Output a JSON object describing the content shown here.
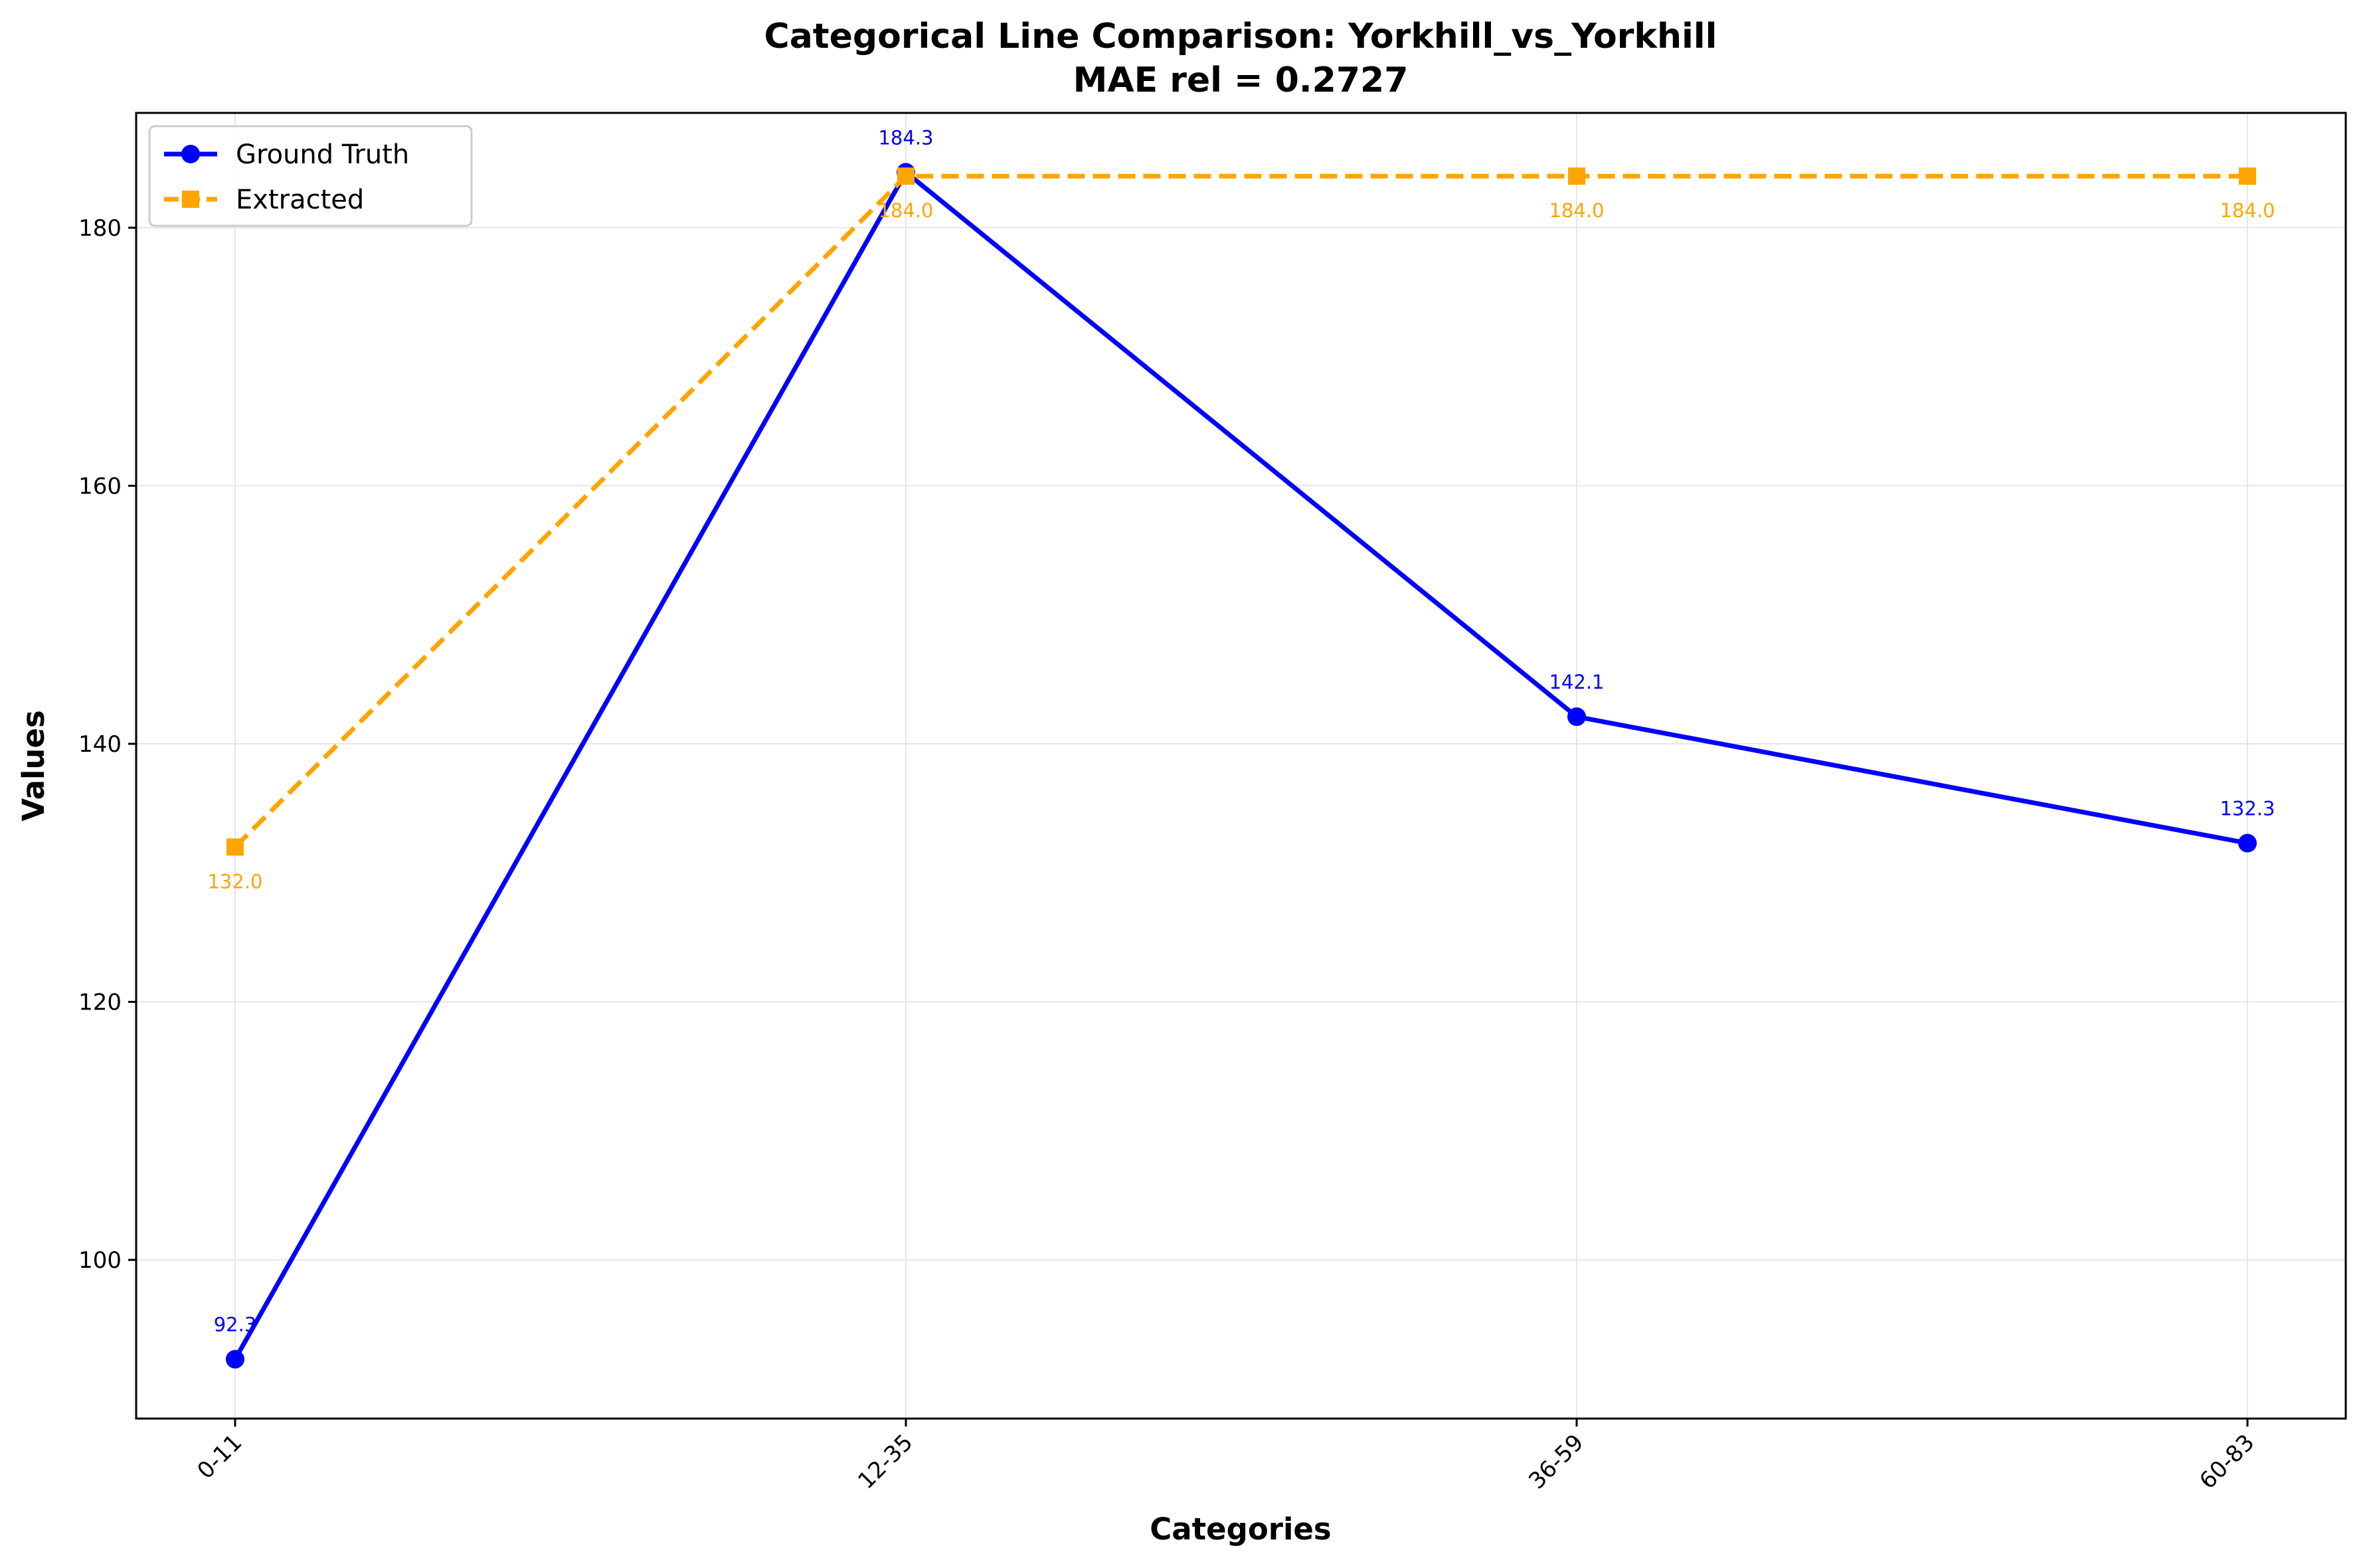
{
  "chart_data": {
    "type": "line",
    "title": "Categorical Line Comparison: Yorkhill_vs_Yorkhill",
    "subtitle": "MAE rel = 0.2727",
    "xlabel": "Categories",
    "ylabel": "Values",
    "categories": [
      "0-11",
      "12-35",
      "36-59",
      "60-83"
    ],
    "ylim": [
      87.7,
      188.9
    ],
    "yticks": [
      100,
      120,
      140,
      160,
      180
    ],
    "grid": true,
    "legend_position": "top-left",
    "series": [
      {
        "name": "Ground Truth",
        "values": [
          92.3,
          184.3,
          142.1,
          132.3
        ],
        "labels": [
          "92.3",
          "184.3",
          "142.1",
          "132.3"
        ],
        "color": "#0000ff",
        "marker": "circle",
        "line_style": "solid",
        "label_position": "above"
      },
      {
        "name": "Extracted",
        "values": [
          132.0,
          184.0,
          184.0,
          184.0
        ],
        "labels": [
          "132.0",
          "184.0",
          "184.0",
          "184.0"
        ],
        "color": "#ffa500",
        "marker": "square",
        "line_style": "dashed",
        "label_position": "below"
      }
    ]
  }
}
